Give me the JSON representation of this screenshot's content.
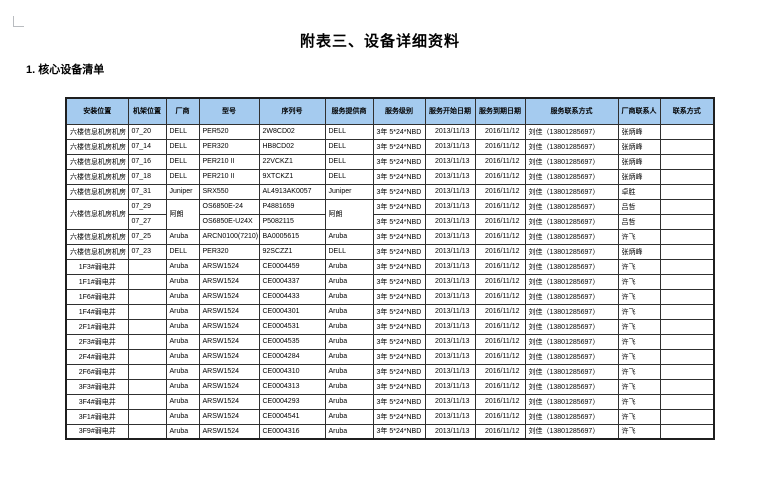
{
  "page": {
    "title": "附表三、设备详细资料",
    "section_heading": "1. 核心设备清单"
  },
  "table": {
    "headers": [
      "安装位置",
      "机架位置",
      "厂商",
      "型号",
      "序列号",
      "服务提供商",
      "服务级别",
      "服务开始日期",
      "服务到期日期",
      "服务联系方式",
      "厂商联系人",
      "联系方式"
    ],
    "rows": [
      [
        "六楼信息机房机房",
        "07_20",
        "DELL",
        "PER520",
        "2W8CD02",
        "DELL",
        "3年 5*24*NBD",
        "2013/11/13",
        "2016/11/12",
        "刘佳（13801285697）",
        "张炳峰",
        ""
      ],
      [
        "六楼信息机房机房",
        "07_14",
        "DELL",
        "PER320",
        "HB8CD02",
        "DELL",
        "3年 5*24*NBD",
        "2013/11/13",
        "2016/11/12",
        "刘佳（13801285697）",
        "张炳峰",
        ""
      ],
      [
        "六楼信息机房机房",
        "07_16",
        "DELL",
        "PER210 II",
        "22VCKZ1",
        "DELL",
        "3年 5*24*NBD",
        "2013/11/13",
        "2016/11/12",
        "刘佳（13801285697）",
        "张炳峰",
        ""
      ],
      [
        "六楼信息机房机房",
        "07_18",
        "DELL",
        "PER210 II",
        "9XTCKZ1",
        "DELL",
        "3年 5*24*NBD",
        "2013/11/13",
        "2016/11/12",
        "刘佳（13801285697）",
        "张炳峰",
        ""
      ],
      [
        "六楼信息机房机房",
        "07_31",
        "Juniper",
        "SRX550",
        "AL4913AK0057",
        "Juniper",
        "3年 5*24*NBD",
        "2013/11/13",
        "2016/11/12",
        "刘佳（13801285697）",
        "卓胜",
        ""
      ],
      [
        {
          "text": "六楼信息机房机房",
          "rowspan": 2
        },
        "07_29",
        {
          "text": "阿朗",
          "rowspan": 2
        },
        "OS6850E-24",
        "P4881659",
        {
          "text": "阿朗",
          "rowspan": 2
        },
        "3年 5*24*NBD",
        "2013/11/13",
        "2016/11/12",
        "刘佳（13801285697）",
        "吕哲",
        ""
      ],
      [
        null,
        "07_27",
        null,
        "OS6850E-U24X",
        "P5082115",
        null,
        "3年 5*24*NBD",
        "2013/11/13",
        "2016/11/12",
        "刘佳（13801285697）",
        "吕哲",
        ""
      ],
      [
        "六楼信息机房机房",
        "07_25",
        "Aruba",
        "ARCN0100(7210)",
        "BA0005615",
        "Aruba",
        "3年 5*24*NBD",
        "2013/11/13",
        "2016/11/12",
        "刘佳（13801285697）",
        "许飞",
        ""
      ],
      [
        "六楼信息机房机房",
        "07_23",
        "DELL",
        "PER320",
        "92SCZZ1",
        "DELL",
        "3年 5*24*NBD",
        "2013/11/13",
        "2016/11/12",
        "刘佳（13801285697）",
        "张炳峰",
        ""
      ],
      [
        "1F3#弱电井",
        "",
        "Aruba",
        "ARSW1524",
        "CE0004459",
        "Aruba",
        "3年 5*24*NBD",
        "2013/11/13",
        "2016/11/12",
        "刘佳（13801285697）",
        "许飞",
        ""
      ],
      [
        "1F1#弱电井",
        "",
        "Aruba",
        "ARSW1524",
        "CE0004337",
        "Aruba",
        "3年 5*24*NBD",
        "2013/11/13",
        "2016/11/12",
        "刘佳（13801285697）",
        "许飞",
        ""
      ],
      [
        "1F6#弱电井",
        "",
        "Aruba",
        "ARSW1524",
        "CE0004433",
        "Aruba",
        "3年 5*24*NBD",
        "2013/11/13",
        "2016/11/12",
        "刘佳（13801285697）",
        "许飞",
        ""
      ],
      [
        "1F4#弱电井",
        "",
        "Aruba",
        "ARSW1524",
        "CE0004301",
        "Aruba",
        "3年 5*24*NBD",
        "2013/11/13",
        "2016/11/12",
        "刘佳（13801285697）",
        "许飞",
        ""
      ],
      [
        "2F1#弱电井",
        "",
        "Aruba",
        "ARSW1524",
        "CE0004531",
        "Aruba",
        "3年 5*24*NBD",
        "2013/11/13",
        "2016/11/12",
        "刘佳（13801285697）",
        "许飞",
        ""
      ],
      [
        "2F3#弱电井",
        "",
        "Aruba",
        "ARSW1524",
        "CE0004535",
        "Aruba",
        "3年 5*24*NBD",
        "2013/11/13",
        "2016/11/12",
        "刘佳（13801285697）",
        "许飞",
        ""
      ],
      [
        "2F4#弱电井",
        "",
        "Aruba",
        "ARSW1524",
        "CE0004284",
        "Aruba",
        "3年 5*24*NBD",
        "2013/11/13",
        "2016/11/12",
        "刘佳（13801285697）",
        "许飞",
        ""
      ],
      [
        "2F6#弱电井",
        "",
        "Aruba",
        "ARSW1524",
        "CE0004310",
        "Aruba",
        "3年 5*24*NBD",
        "2013/11/13",
        "2016/11/12",
        "刘佳（13801285697）",
        "许飞",
        ""
      ],
      [
        "3F3#弱电井",
        "",
        "Aruba",
        "ARSW1524",
        "CE0004313",
        "Aruba",
        "3年 5*24*NBD",
        "2013/11/13",
        "2016/11/12",
        "刘佳（13801285697）",
        "许飞",
        ""
      ],
      [
        "3F4#弱电井",
        "",
        "Aruba",
        "ARSW1524",
        "CE0004293",
        "Aruba",
        "3年 5*24*NBD",
        "2013/11/13",
        "2016/11/12",
        "刘佳（13801285697）",
        "许飞",
        ""
      ],
      [
        "3F1#弱电井",
        "",
        "Aruba",
        "ARSW1524",
        "CE0004541",
        "Aruba",
        "3年 5*24*NBD",
        "2013/11/13",
        "2016/11/12",
        "刘佳（13801285697）",
        "许飞",
        ""
      ],
      [
        "3F9#弱电井",
        "",
        "Aruba",
        "ARSW1524",
        "CE0004316",
        "Aruba",
        "3年 5*24*NBD",
        "2013/11/13",
        "2016/11/12",
        "刘佳（13801285697）",
        "许飞",
        ""
      ]
    ],
    "header_bg_color": "#a5cbef"
  }
}
